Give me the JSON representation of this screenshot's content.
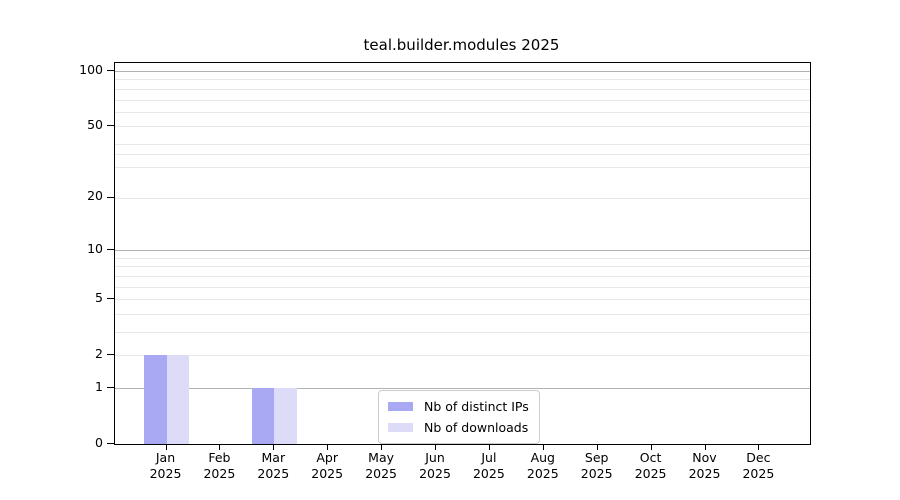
{
  "title": "teal.builder.modules 2025",
  "chart_data": {
    "type": "bar",
    "title": "teal.builder.modules 2025",
    "categories": [
      "Jan",
      "Feb",
      "Mar",
      "Apr",
      "May",
      "Jun",
      "Jul",
      "Aug",
      "Sep",
      "Oct",
      "Nov",
      "Dec"
    ],
    "category_year": "2025",
    "series": [
      {
        "name": "Nb of distinct IPs",
        "color": "#a9a9f3",
        "values": [
          2,
          0,
          1,
          0,
          0,
          0,
          0,
          0,
          0,
          0,
          0,
          0
        ]
      },
      {
        "name": "Nb of downloads",
        "color": "#dcdcf8",
        "values": [
          2,
          0,
          1,
          0,
          0,
          0,
          0,
          0,
          0,
          0,
          0,
          0
        ]
      }
    ],
    "y_axis": {
      "scale": "log10(value+1)",
      "tick_labels": [
        "100",
        "50",
        "20",
        "10",
        "5",
        "2",
        "1",
        "0"
      ],
      "tick_values": [
        100,
        50,
        20,
        10,
        5,
        2,
        1,
        0
      ],
      "major_grid_values": [
        100,
        10,
        1
      ],
      "minor_grid_values": [
        90,
        80,
        70,
        60,
        40,
        35,
        30,
        9,
        8,
        7,
        6,
        4,
        3
      ],
      "range": [
        0,
        110
      ],
      "grid": true
    },
    "x_axis": {
      "tick_count": 12
    },
    "legend": {
      "position": "lower center",
      "entries": [
        "Nb of distinct IPs",
        "Nb of downloads"
      ]
    }
  },
  "colors": {
    "bar_distinct_ips": "#a9a9f3",
    "bar_downloads": "#dcdcf8",
    "grid_major": "#b2b2b2",
    "grid_minor": "#e8e8e8",
    "spine": "#000000",
    "legend_border": "#cccccc",
    "text": "#000000"
  }
}
